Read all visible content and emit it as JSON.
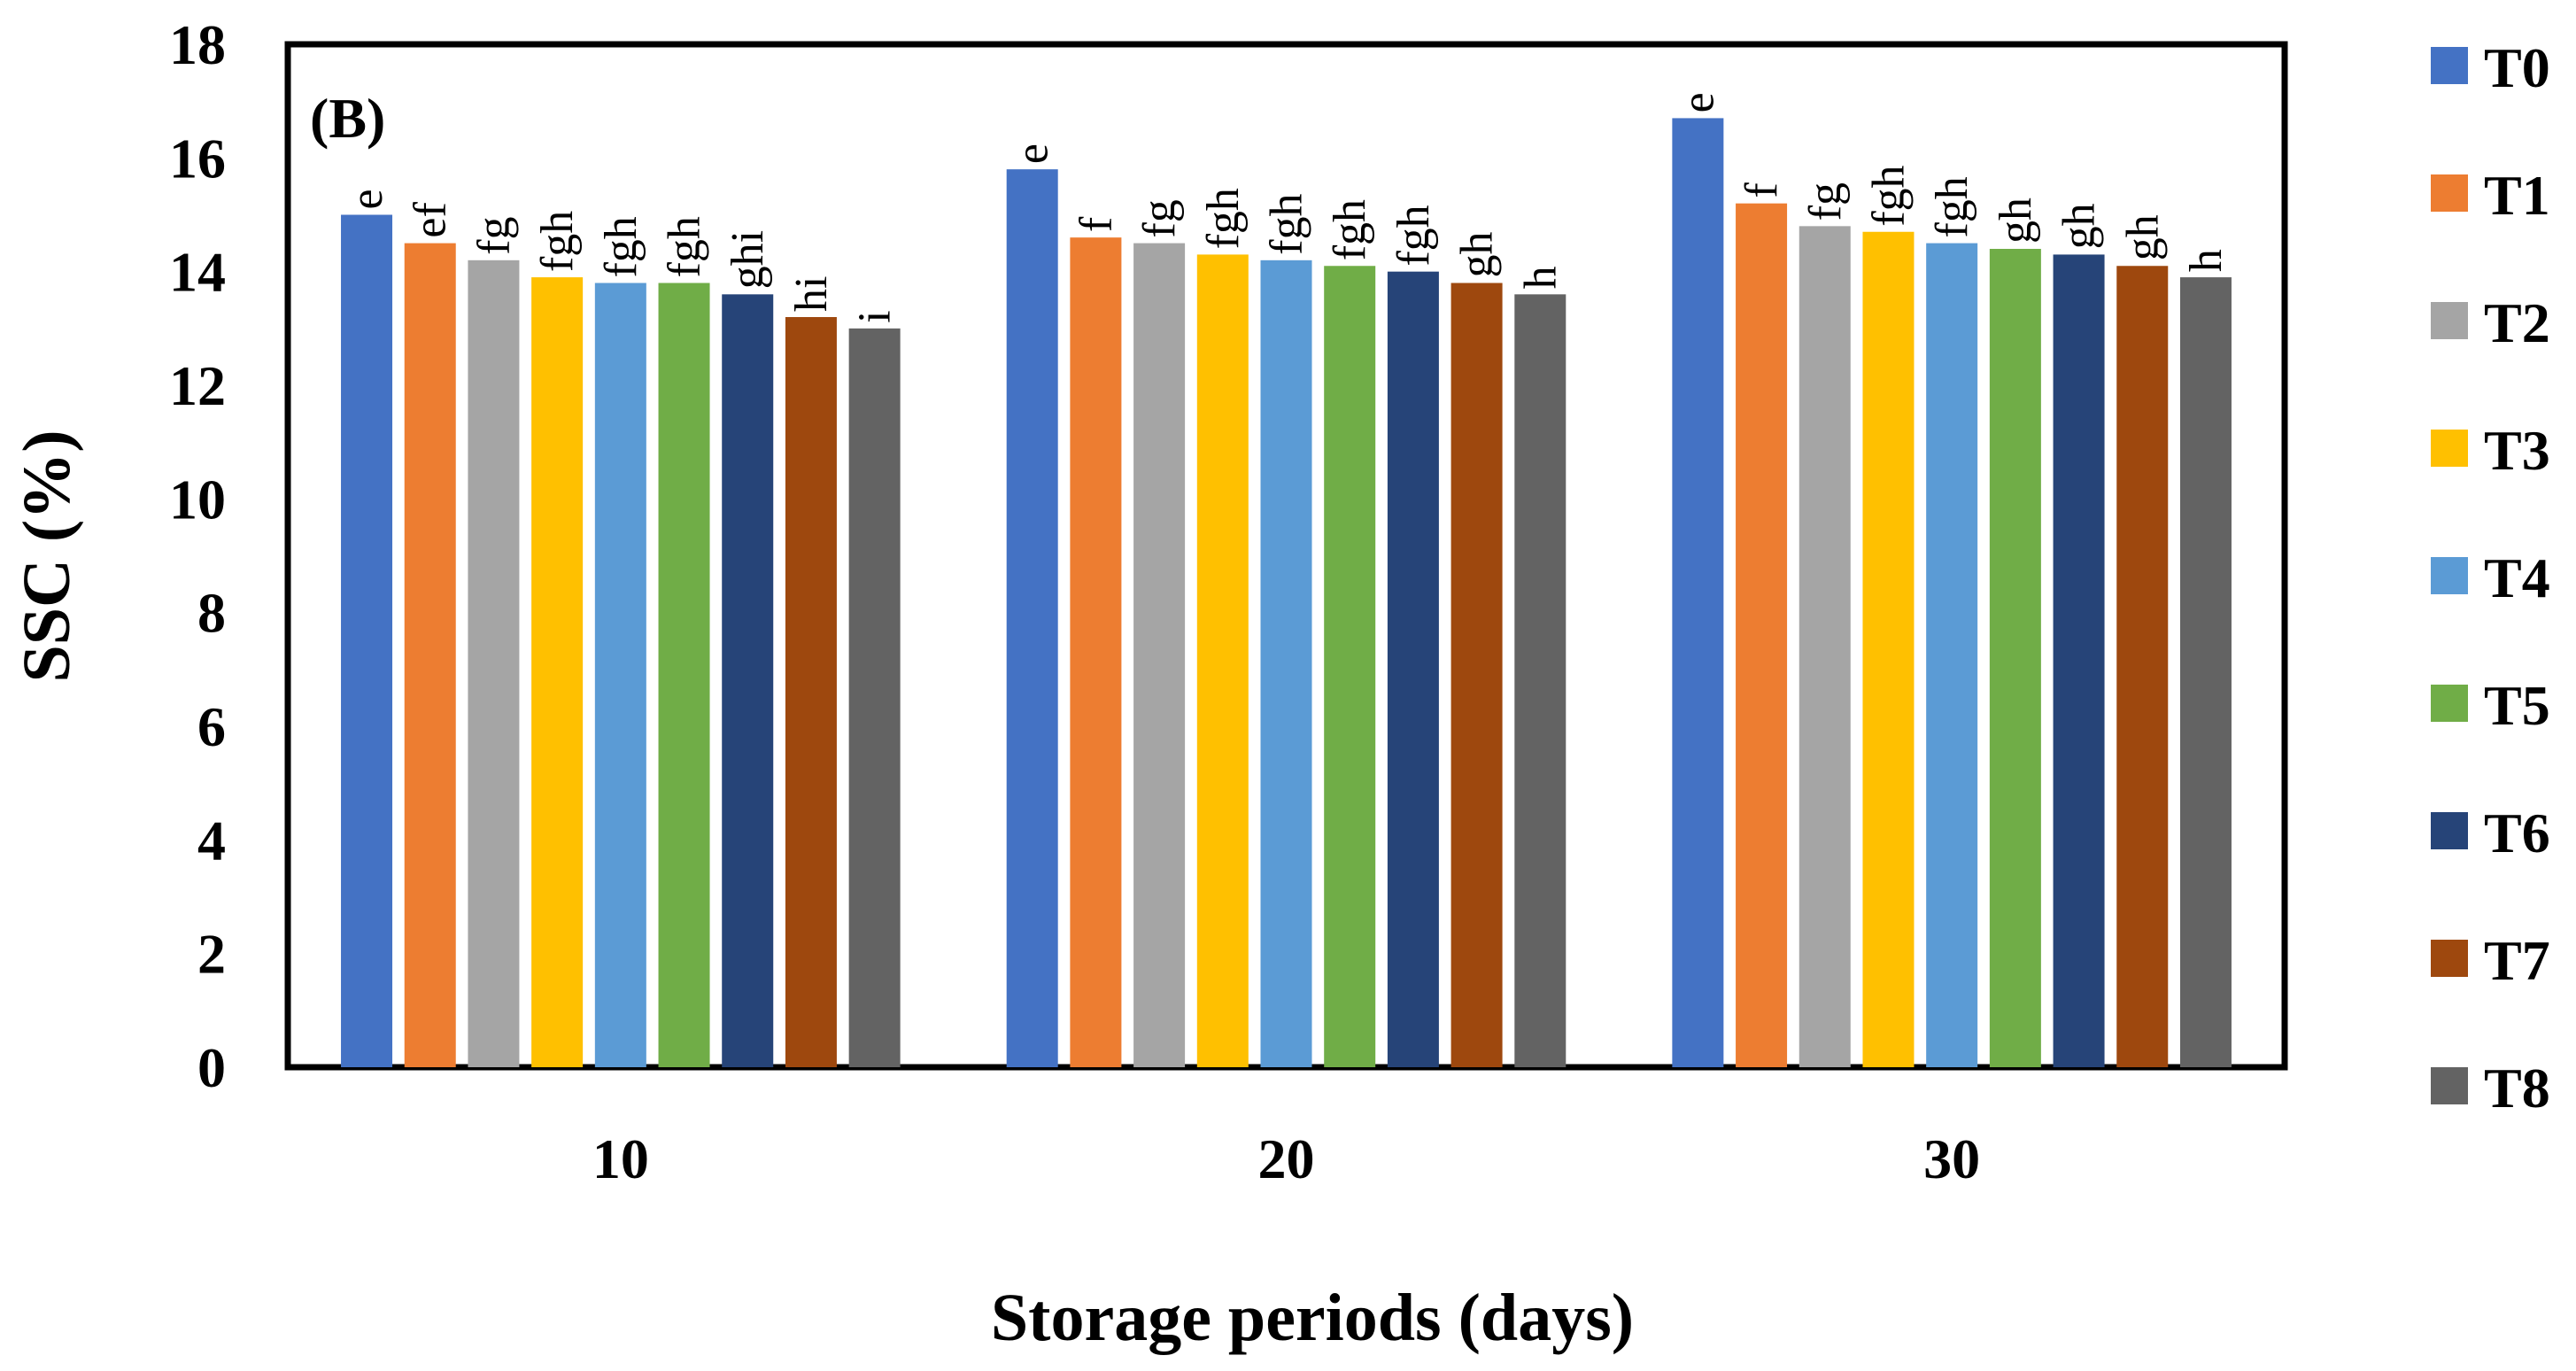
{
  "chart_data": {
    "type": "bar",
    "panel_label": "(B)",
    "xlabel": "Storage periods (days)",
    "ylabel": "SSC (%)",
    "ylim": [
      0,
      18
    ],
    "yticks": [
      0,
      2,
      4,
      6,
      8,
      10,
      12,
      14,
      16,
      18
    ],
    "categories": [
      "10",
      "20",
      "30"
    ],
    "legend_position": "right",
    "series": [
      {
        "name": "T0",
        "color": "#4472C4",
        "values": [
          15.0,
          15.8,
          16.7
        ],
        "labels": [
          "e",
          "e",
          "e"
        ]
      },
      {
        "name": "T1",
        "color": "#ED7D31",
        "values": [
          14.5,
          14.6,
          15.2
        ],
        "labels": [
          "ef",
          "f",
          "f"
        ]
      },
      {
        "name": "T2",
        "color": "#A5A5A5",
        "values": [
          14.2,
          14.5,
          14.8
        ],
        "labels": [
          "fg",
          "fg",
          "fg"
        ]
      },
      {
        "name": "T3",
        "color": "#FFC000",
        "values": [
          13.9,
          14.3,
          14.7
        ],
        "labels": [
          "fgh",
          "fgh",
          "fgh"
        ]
      },
      {
        "name": "T4",
        "color": "#5B9BD5",
        "values": [
          13.8,
          14.2,
          14.5
        ],
        "labels": [
          "fgh",
          "fgh",
          "fgh"
        ]
      },
      {
        "name": "T5",
        "color": "#70AD47",
        "values": [
          13.8,
          14.1,
          14.4
        ],
        "labels": [
          "fgh",
          "fgh",
          "gh"
        ]
      },
      {
        "name": "T6",
        "color": "#264478",
        "values": [
          13.6,
          14.0,
          14.3
        ],
        "labels": [
          "ghi",
          "fgh",
          "gh"
        ]
      },
      {
        "name": "T7",
        "color": "#9E480E",
        "values": [
          13.2,
          13.8,
          14.1
        ],
        "labels": [
          "hi",
          "gh",
          "gh"
        ]
      },
      {
        "name": "T8",
        "color": "#636363",
        "values": [
          13.0,
          13.6,
          13.9
        ],
        "labels": [
          "i",
          "h",
          "h"
        ]
      }
    ]
  }
}
